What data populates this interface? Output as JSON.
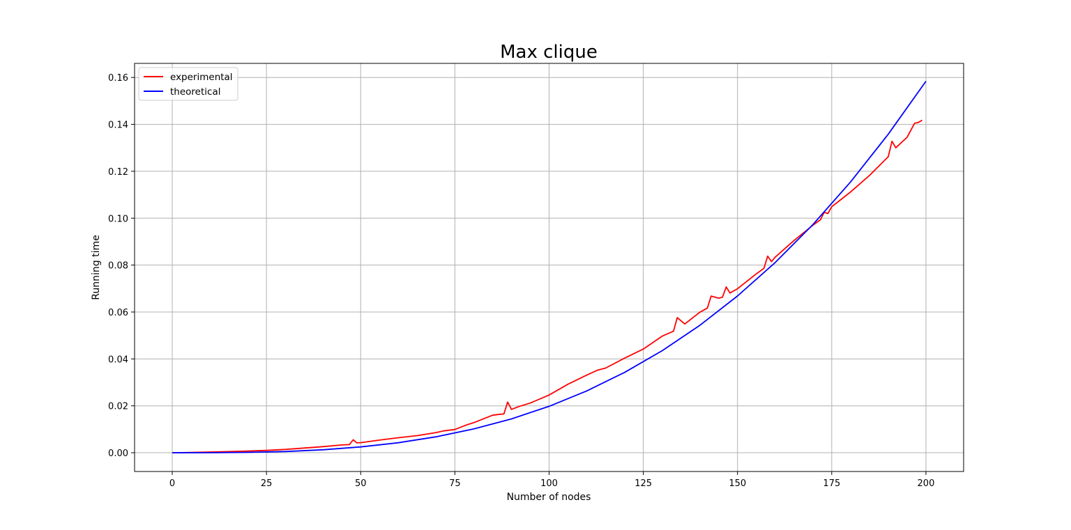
{
  "chart_data": {
    "type": "line",
    "title": "Max clique",
    "xlabel": "Number of nodes",
    "ylabel": "Running time",
    "xlim": [
      -10,
      210
    ],
    "ylim": [
      -0.008,
      0.166
    ],
    "xticks": [
      0,
      25,
      50,
      75,
      100,
      125,
      150,
      175,
      200
    ],
    "xtick_labels": [
      "0",
      "25",
      "50",
      "75",
      "100",
      "125",
      "150",
      "175",
      "200"
    ],
    "yticks": [
      0.0,
      0.02,
      0.04,
      0.06,
      0.08,
      0.1,
      0.12,
      0.14,
      0.16
    ],
    "ytick_labels": [
      "0.00",
      "0.02",
      "0.04",
      "0.06",
      "0.08",
      "0.10",
      "0.12",
      "0.14",
      "0.16"
    ],
    "grid": true,
    "legend_position": "top-left",
    "series": [
      {
        "name": "experimental",
        "color": "#ff0000",
        "x": [
          0,
          5,
          10,
          15,
          20,
          25,
          30,
          35,
          40,
          45,
          47,
          48,
          49,
          50,
          55,
          60,
          65,
          70,
          72,
          75,
          78,
          80,
          85,
          87,
          88,
          89,
          90,
          92,
          95,
          100,
          105,
          110,
          113,
          115,
          120,
          125,
          130,
          133,
          134,
          136,
          140,
          142,
          143,
          145,
          146,
          147,
          148,
          150,
          155,
          157,
          158,
          159,
          160,
          165,
          170,
          172,
          173,
          174,
          175,
          177,
          180,
          185,
          190,
          191,
          192,
          195,
          197,
          198,
          199
        ],
        "y": [
          0.0,
          0.0001,
          0.0003,
          0.0005,
          0.0007,
          0.001,
          0.0014,
          0.002,
          0.0026,
          0.0033,
          0.0035,
          0.0055,
          0.0042,
          0.0043,
          0.0054,
          0.0064,
          0.0073,
          0.0086,
          0.0093,
          0.0099,
          0.0118,
          0.0128,
          0.016,
          0.0164,
          0.0165,
          0.0216,
          0.0185,
          0.0197,
          0.0212,
          0.0246,
          0.0292,
          0.0331,
          0.0353,
          0.0361,
          0.0403,
          0.0442,
          0.0497,
          0.0518,
          0.0576,
          0.0549,
          0.0599,
          0.0617,
          0.0668,
          0.0659,
          0.0663,
          0.0707,
          0.0681,
          0.0699,
          0.0763,
          0.0786,
          0.0838,
          0.0815,
          0.0834,
          0.0905,
          0.097,
          0.0993,
          0.1025,
          0.102,
          0.1049,
          0.1074,
          0.1112,
          0.1182,
          0.1262,
          0.1328,
          0.13,
          0.1345,
          0.1405,
          0.1408,
          0.1418
        ]
      },
      {
        "name": "theoretical",
        "color": "#0000ff",
        "x": [
          0,
          10,
          20,
          30,
          40,
          50,
          60,
          70,
          80,
          90,
          100,
          110,
          120,
          130,
          140,
          150,
          160,
          170,
          180,
          190,
          200
        ],
        "y": [
          0.0,
          2e-05,
          0.00016,
          0.00053,
          0.00126,
          0.00247,
          0.00427,
          0.00679,
          0.01013,
          0.01443,
          0.0198,
          0.02635,
          0.03421,
          0.0435,
          0.05433,
          0.06683,
          0.0811,
          0.09727,
          0.11547,
          0.1358,
          0.1584
        ]
      }
    ]
  }
}
